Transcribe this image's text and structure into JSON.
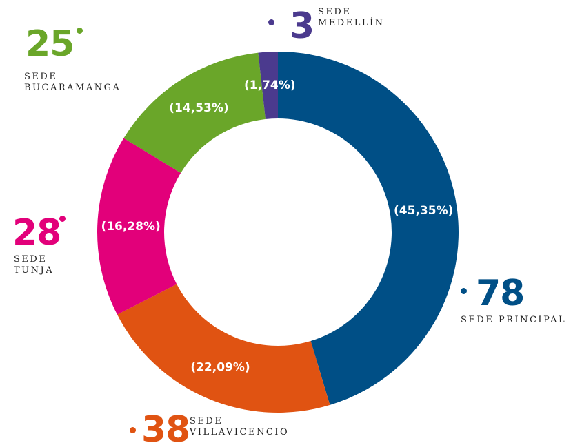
{
  "chart_data": {
    "type": "donut",
    "categories": [
      "SEDE PRINCIPAL",
      "SEDE VILLAVICENCIO",
      "SEDE TUNJA",
      "SEDE BUCARAMANGA",
      "SEDE MEDELLÍN"
    ],
    "values": [
      78,
      38,
      28,
      25,
      3
    ],
    "percentages": [
      45.35,
      22.09,
      16.28,
      14.53,
      1.74
    ],
    "percentage_labels": [
      "(45,35%)",
      "(22,09%)",
      "(16,28%)",
      "(14,53%)",
      "(1,74%)"
    ],
    "colors": [
      "#004f86",
      "#e05312",
      "#e2007a",
      "#6aa629",
      "#4b3a8e"
    ]
  }
}
